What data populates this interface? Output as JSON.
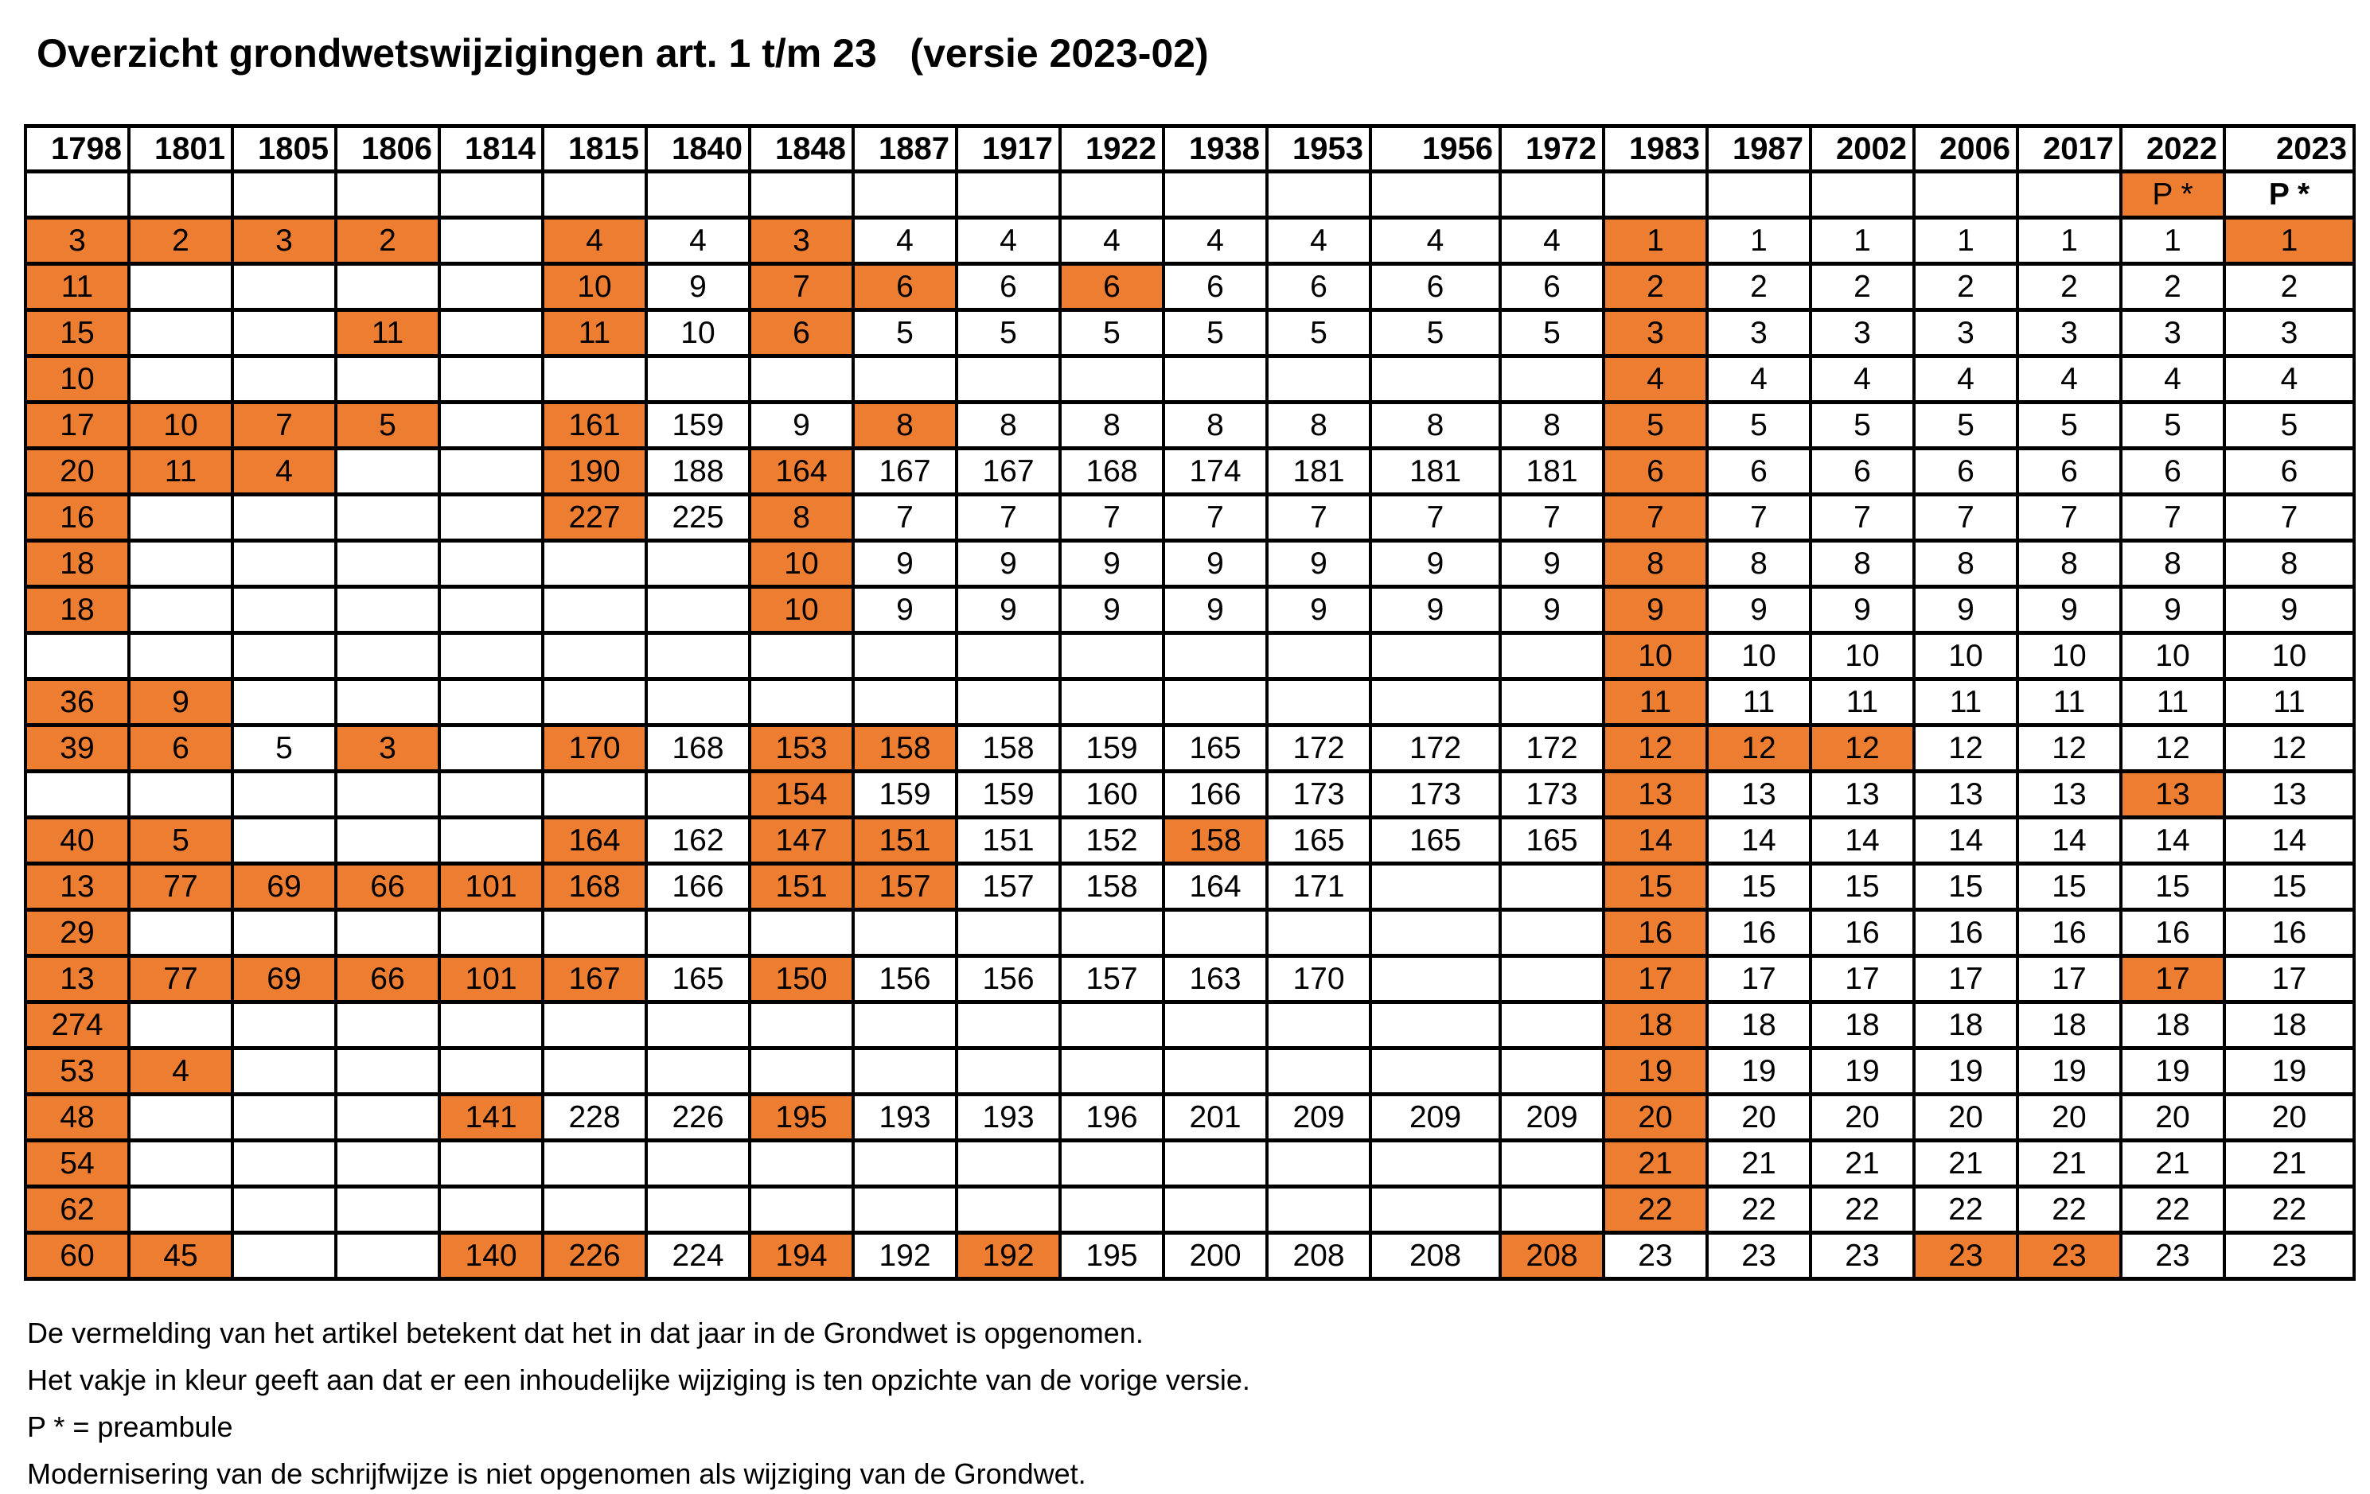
{
  "title": "Overzicht grondwetswijzigingen art. 1 t/m 23   (versie 2023-02)",
  "colors": {
    "highlight": "#ED7D31",
    "grid": "#000000",
    "background": "#FFFFFF",
    "text": "#000000"
  },
  "table": {
    "years": [
      "1798",
      "1801",
      "1805",
      "1806",
      "1814",
      "1815",
      "1840",
      "1848",
      "1887",
      "1917",
      "1922",
      "1938",
      "1953",
      "1956",
      "1972",
      "1983",
      "1987",
      "2002",
      "2006",
      "2017",
      "2022",
      "2023"
    ],
    "preamble": {
      "cells": [
        "",
        "",
        "",
        "",
        "",
        "",
        "",
        "",
        "",
        "",
        "",
        "",
        "",
        "",
        "",
        "",
        "",
        "",
        "",
        "",
        "P *",
        "P *"
      ],
      "hl": [
        20
      ],
      "bold": [
        21
      ]
    },
    "rows": [
      {
        "cells": [
          "3",
          "2",
          "3",
          "2",
          "",
          "4",
          "4",
          "3",
          "4",
          "4",
          "4",
          "4",
          "4",
          "4",
          "4",
          "1",
          "1",
          "1",
          "1",
          "1",
          "1",
          "1"
        ],
        "hl": [
          0,
          1,
          2,
          3,
          5,
          7,
          15,
          21
        ]
      },
      {
        "cells": [
          "11",
          "",
          "",
          "",
          "",
          "10",
          "9",
          "7",
          "6",
          "6",
          "6",
          "6",
          "6",
          "6",
          "6",
          "2",
          "2",
          "2",
          "2",
          "2",
          "2",
          "2"
        ],
        "hl": [
          0,
          5,
          7,
          8,
          10,
          15
        ]
      },
      {
        "cells": [
          "15",
          "",
          "",
          "11",
          "",
          "11",
          "10",
          "6",
          "5",
          "5",
          "5",
          "5",
          "5",
          "5",
          "5",
          "3",
          "3",
          "3",
          "3",
          "3",
          "3",
          "3"
        ],
        "hl": [
          0,
          3,
          5,
          7,
          15
        ]
      },
      {
        "cells": [
          "10",
          "",
          "",
          "",
          "",
          "",
          "",
          "",
          "",
          "",
          "",
          "",
          "",
          "",
          "",
          "4",
          "4",
          "4",
          "4",
          "4",
          "4",
          "4"
        ],
        "hl": [
          0,
          15
        ]
      },
      {
        "cells": [
          "17",
          "10",
          "7",
          "5",
          "",
          "161",
          "159",
          "9",
          "8",
          "8",
          "8",
          "8",
          "8",
          "8",
          "8",
          "5",
          "5",
          "5",
          "5",
          "5",
          "5",
          "5"
        ],
        "hl": [
          0,
          1,
          2,
          3,
          5,
          8,
          15
        ]
      },
      {
        "cells": [
          "20",
          "11",
          "4",
          "",
          "",
          "190",
          "188",
          "164",
          "167",
          "167",
          "168",
          "174",
          "181",
          "181",
          "181",
          "6",
          "6",
          "6",
          "6",
          "6",
          "6",
          "6"
        ],
        "hl": [
          0,
          1,
          2,
          5,
          7,
          15
        ]
      },
      {
        "cells": [
          "16",
          "",
          "",
          "",
          "",
          "227",
          "225",
          "8",
          "7",
          "7",
          "7",
          "7",
          "7",
          "7",
          "7",
          "7",
          "7",
          "7",
          "7",
          "7",
          "7",
          "7"
        ],
        "hl": [
          0,
          5,
          7,
          15
        ]
      },
      {
        "cells": [
          "18",
          "",
          "",
          "",
          "",
          "",
          "",
          "10",
          "9",
          "9",
          "9",
          "9",
          "9",
          "9",
          "9",
          "8",
          "8",
          "8",
          "8",
          "8",
          "8",
          "8"
        ],
        "hl": [
          0,
          7,
          15
        ]
      },
      {
        "cells": [
          "18",
          "",
          "",
          "",
          "",
          "",
          "",
          "10",
          "9",
          "9",
          "9",
          "9",
          "9",
          "9",
          "9",
          "9",
          "9",
          "9",
          "9",
          "9",
          "9",
          "9"
        ],
        "hl": [
          0,
          7,
          15
        ]
      },
      {
        "cells": [
          "",
          "",
          "",
          "",
          "",
          "",
          "",
          "",
          "",
          "",
          "",
          "",
          "",
          "",
          "",
          "10",
          "10",
          "10",
          "10",
          "10",
          "10",
          "10"
        ],
        "hl": [
          15
        ]
      },
      {
        "cells": [
          "36",
          "9",
          "",
          "",
          "",
          "",
          "",
          "",
          "",
          "",
          "",
          "",
          "",
          "",
          "",
          "11",
          "11",
          "11",
          "11",
          "11",
          "11",
          "11"
        ],
        "hl": [
          0,
          1,
          15
        ]
      },
      {
        "cells": [
          "39",
          "6",
          "5",
          "3",
          "",
          "170",
          "168",
          "153",
          "158",
          "158",
          "159",
          "165",
          "172",
          "172",
          "172",
          "12",
          "12",
          "12",
          "12",
          "12",
          "12",
          "12"
        ],
        "hl": [
          0,
          1,
          3,
          5,
          7,
          8,
          15,
          16,
          17
        ]
      },
      {
        "cells": [
          "",
          "",
          "",
          "",
          "",
          "",
          "",
          "154",
          "159",
          "159",
          "160",
          "166",
          "173",
          "173",
          "173",
          "13",
          "13",
          "13",
          "13",
          "13",
          "13",
          "13"
        ],
        "hl": [
          7,
          15,
          20
        ]
      },
      {
        "cells": [
          "40",
          "5",
          "",
          "",
          "",
          "164",
          "162",
          "147",
          "151",
          "151",
          "152",
          "158",
          "165",
          "165",
          "165",
          "14",
          "14",
          "14",
          "14",
          "14",
          "14",
          "14"
        ],
        "hl": [
          0,
          1,
          5,
          7,
          8,
          11,
          15
        ]
      },
      {
        "cells": [
          "13",
          "77",
          "69",
          "66",
          "101",
          "168",
          "166",
          "151",
          "157",
          "157",
          "158",
          "164",
          "171",
          "",
          "",
          "15",
          "15",
          "15",
          "15",
          "15",
          "15",
          "15"
        ],
        "hl": [
          0,
          1,
          2,
          3,
          4,
          5,
          7,
          8,
          15
        ]
      },
      {
        "cells": [
          "29",
          "",
          "",
          "",
          "",
          "",
          "",
          "",
          "",
          "",
          "",
          "",
          "",
          "",
          "",
          "16",
          "16",
          "16",
          "16",
          "16",
          "16",
          "16"
        ],
        "hl": [
          0,
          15
        ]
      },
      {
        "cells": [
          "13",
          "77",
          "69",
          "66",
          "101",
          "167",
          "165",
          "150",
          "156",
          "156",
          "157",
          "163",
          "170",
          "",
          "",
          "17",
          "17",
          "17",
          "17",
          "17",
          "17",
          "17"
        ],
        "hl": [
          0,
          1,
          2,
          3,
          4,
          5,
          7,
          15,
          20
        ]
      },
      {
        "cells": [
          "274",
          "",
          "",
          "",
          "",
          "",
          "",
          "",
          "",
          "",
          "",
          "",
          "",
          "",
          "",
          "18",
          "18",
          "18",
          "18",
          "18",
          "18",
          "18"
        ],
        "hl": [
          0,
          15
        ]
      },
      {
        "cells": [
          "53",
          "4",
          "",
          "",
          "",
          "",
          "",
          "",
          "",
          "",
          "",
          "",
          "",
          "",
          "",
          "19",
          "19",
          "19",
          "19",
          "19",
          "19",
          "19"
        ],
        "hl": [
          0,
          1,
          15
        ]
      },
      {
        "cells": [
          "48",
          "",
          "",
          "",
          "141",
          "228",
          "226",
          "195",
          "193",
          "193",
          "196",
          "201",
          "209",
          "209",
          "209",
          "20",
          "20",
          "20",
          "20",
          "20",
          "20",
          "20"
        ],
        "hl": [
          0,
          4,
          7,
          15
        ]
      },
      {
        "cells": [
          "54",
          "",
          "",
          "",
          "",
          "",
          "",
          "",
          "",
          "",
          "",
          "",
          "",
          "",
          "",
          "21",
          "21",
          "21",
          "21",
          "21",
          "21",
          "21"
        ],
        "hl": [
          0,
          15
        ]
      },
      {
        "cells": [
          "62",
          "",
          "",
          "",
          "",
          "",
          "",
          "",
          "",
          "",
          "",
          "",
          "",
          "",
          "",
          "22",
          "22",
          "22",
          "22",
          "22",
          "22",
          "22"
        ],
        "hl": [
          0,
          15
        ]
      },
      {
        "cells": [
          "60",
          "45",
          "",
          "",
          "140",
          "226",
          "224",
          "194",
          "192",
          "192",
          "195",
          "200",
          "208",
          "208",
          "208",
          "23",
          "23",
          "23",
          "23",
          "23",
          "23",
          "23"
        ],
        "hl": [
          0,
          1,
          4,
          5,
          7,
          9,
          14,
          18,
          19
        ]
      }
    ]
  },
  "footnotes": [
    "De vermelding van het artikel betekent dat het in dat jaar in de Grondwet is opgenomen.",
    "Het vakje in kleur geeft aan dat er een inhoudelijke wijziging is ten opzichte van de vorige versie.",
    "P * = preambule",
    "Modernisering van de schrijfwijze is niet opgenomen als wijziging van de Grondwet."
  ]
}
